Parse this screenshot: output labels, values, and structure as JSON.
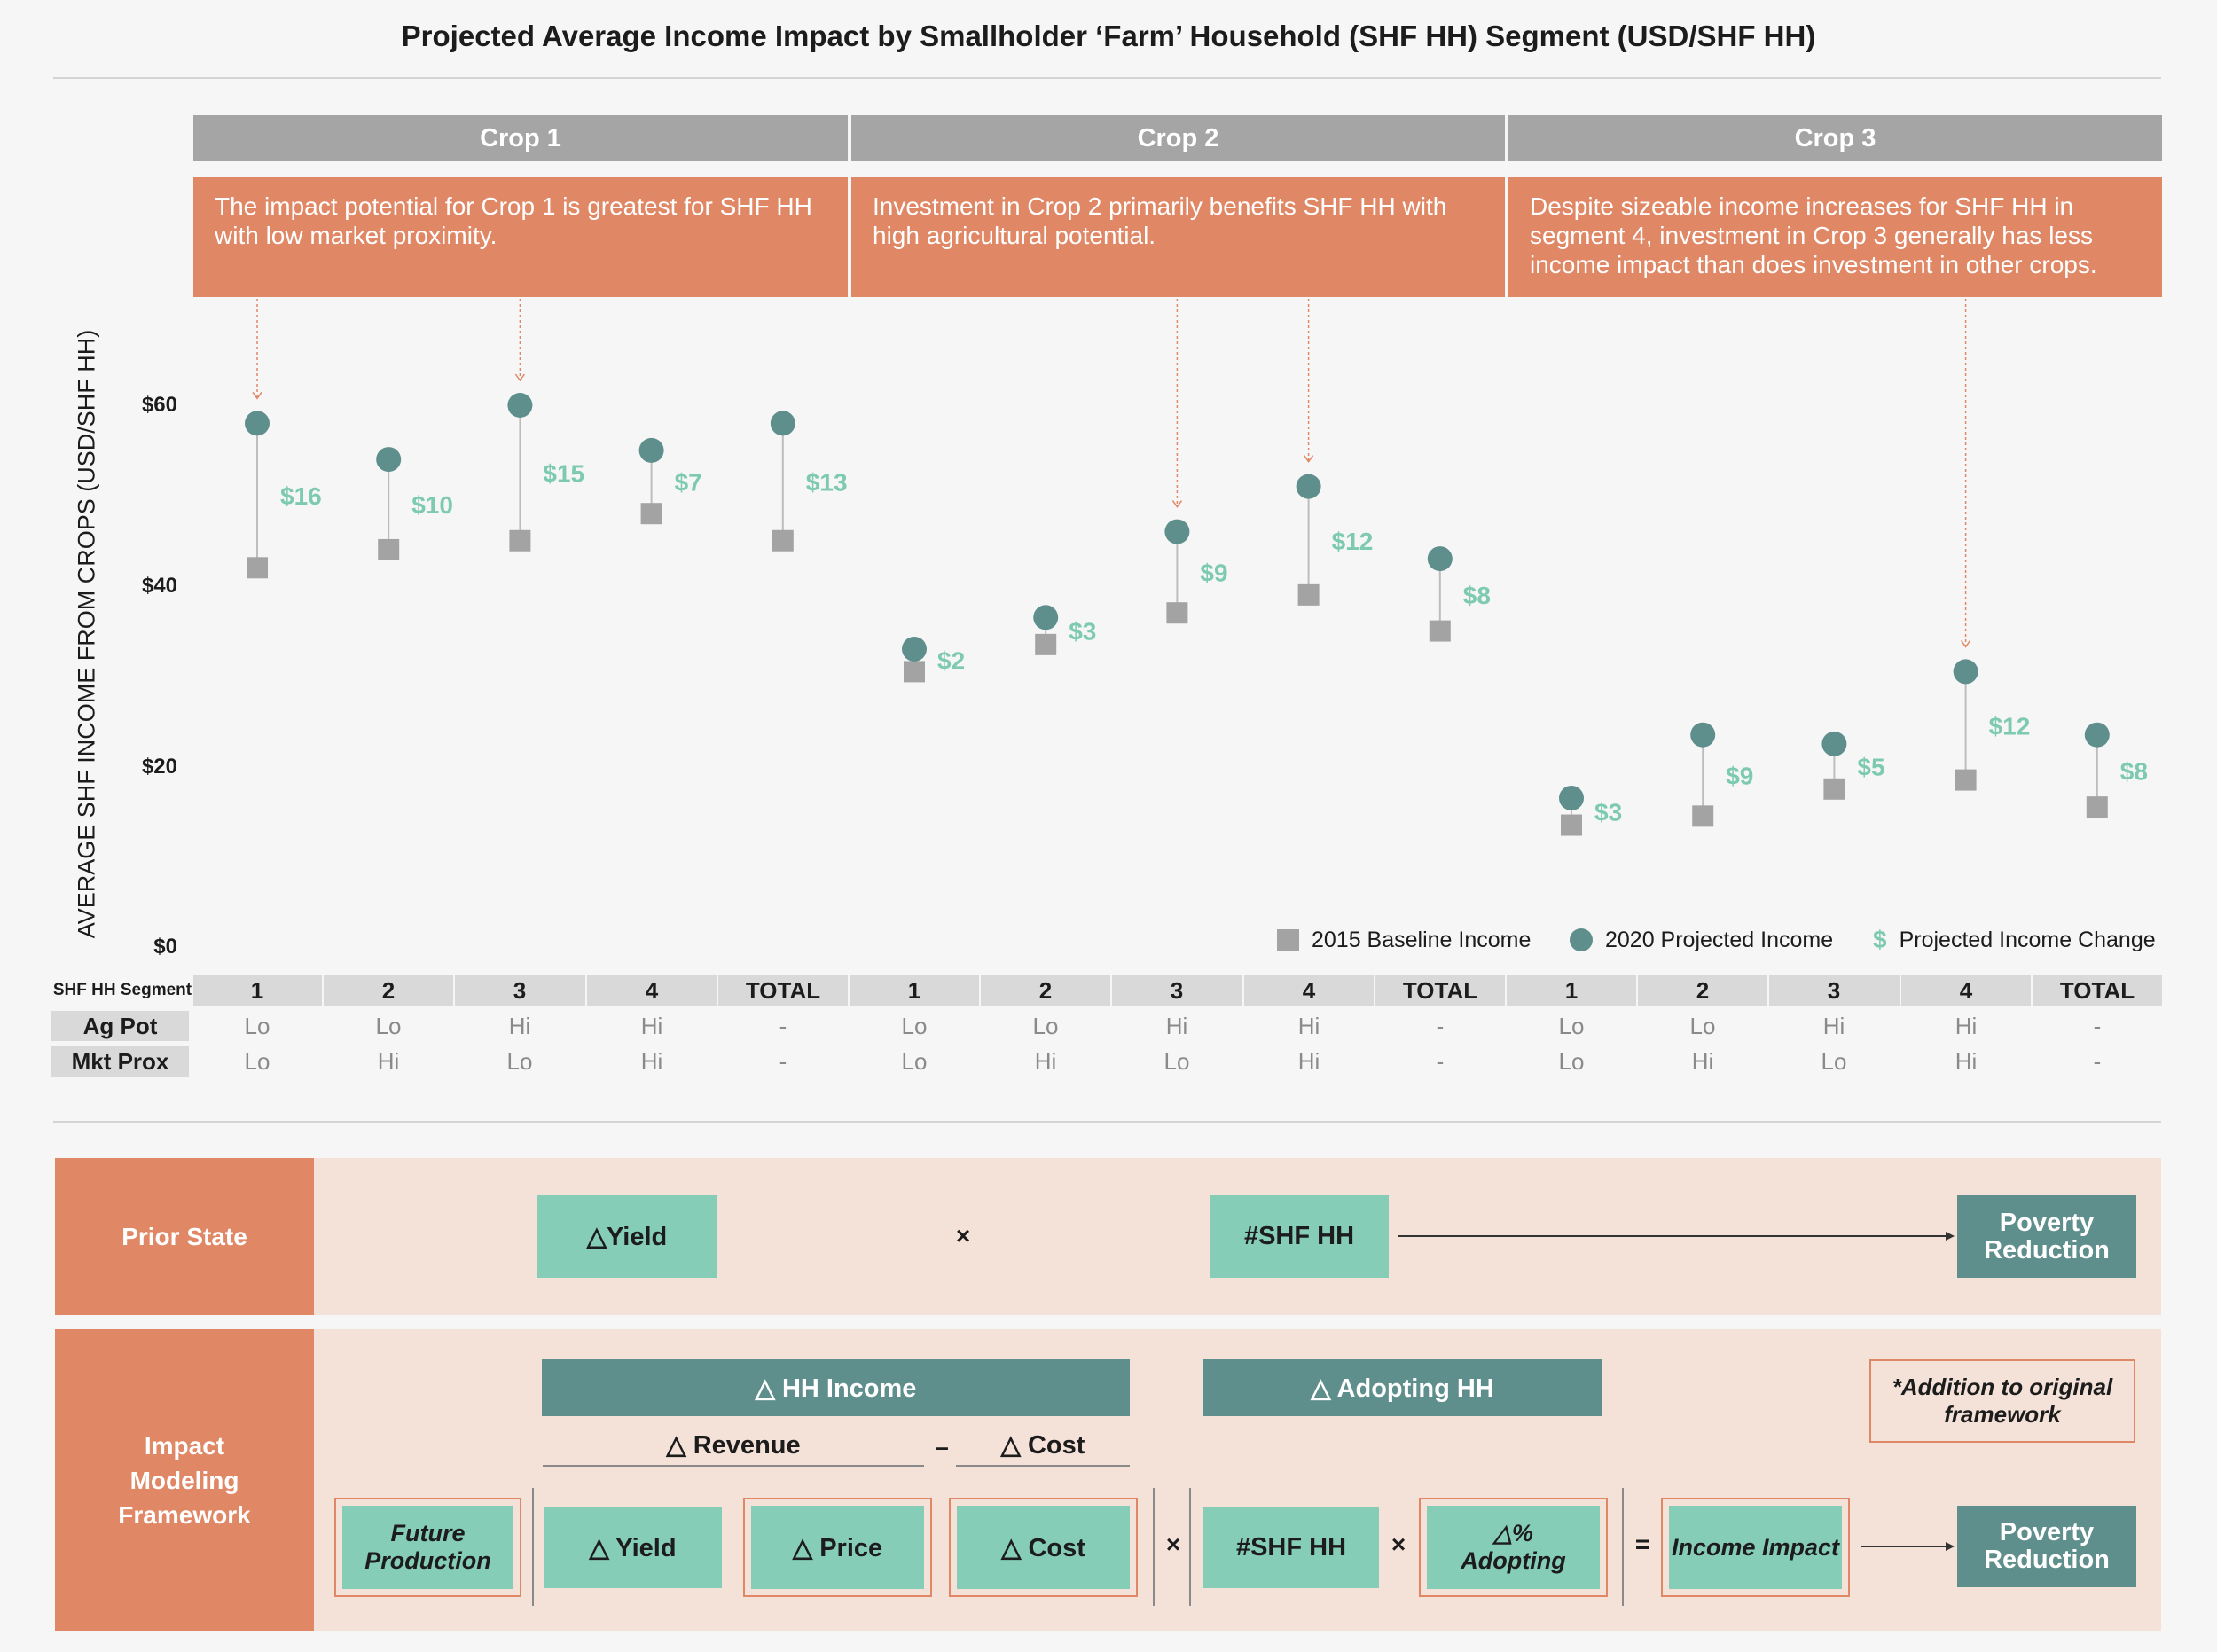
{
  "title": "Projected Average Income Impact by Smallholder ‘Farm’ Household (SHF HH) Segment (USD/SHF HH)",
  "crops": [
    {
      "name": "Crop 1",
      "note": "The impact potential for Crop 1 is greatest for SHF HH with low market proximity."
    },
    {
      "name": "Crop 2",
      "note": "Investment in Crop 2 primarily benefits SHF HH with high agricultural potential."
    },
    {
      "name": "Crop 3",
      "note": "Despite sizeable income increases for SHF HH in segment 4, investment in Crop 3 generally has less income impact than does investment in other crops."
    }
  ],
  "chart_data": {
    "type": "scatter",
    "ylabel": "AVERAGE SHF INCOME FROM CROPS (USD/SHF HH)",
    "ylim": [
      0,
      60
    ],
    "yticks": [
      "$0",
      "$20",
      "$40",
      "$60"
    ],
    "groups": [
      "Crop 1",
      "Crop 2",
      "Crop 3"
    ],
    "categories": [
      "1",
      "2",
      "3",
      "4",
      "TOTAL",
      "1",
      "2",
      "3",
      "4",
      "TOTAL",
      "1",
      "2",
      "3",
      "4",
      "TOTAL"
    ],
    "series": [
      {
        "name": "2015 Baseline Income",
        "marker": "square",
        "color": "#a3a3a3",
        "values": [
          42,
          44,
          45,
          48,
          45,
          30.5,
          33.5,
          37,
          39,
          35,
          13.5,
          14.5,
          17.5,
          18.5,
          15.5
        ]
      },
      {
        "name": "2020 Projected Income",
        "marker": "circle",
        "color": "#5f8f8c",
        "values": [
          58,
          54,
          60,
          55,
          58,
          33,
          36.5,
          46,
          51,
          43,
          16.5,
          23.5,
          22.5,
          30.5,
          23.5
        ]
      }
    ],
    "change_labels": [
      "$16",
      "$10",
      "$15",
      "$7",
      "$13",
      "$2",
      "$3",
      "$9",
      "$12",
      "$8",
      "$3",
      "$9",
      "$5",
      "$12",
      "$8"
    ],
    "change_label_color": "#7dcab0",
    "callout_targets": [
      0,
      2,
      7,
      8,
      13
    ],
    "callout_color": "#e08866",
    "legend": [
      {
        "symbol": "square",
        "label": "2015 Baseline Income"
      },
      {
        "symbol": "circle",
        "label": "2020 Projected Income"
      },
      {
        "symbol": "$",
        "label": "Projected Income Change"
      }
    ],
    "segment_table": {
      "header_label": "SHF HH Segment",
      "rows": [
        {
          "label": "Ag Pot",
          "values": [
            "Lo",
            "Lo",
            "Hi",
            "Hi",
            "-",
            "Lo",
            "Lo",
            "Hi",
            "Hi",
            "-",
            "Lo",
            "Lo",
            "Hi",
            "Hi",
            "-"
          ]
        },
        {
          "label": "Mkt Prox",
          "values": [
            "Lo",
            "Hi",
            "Lo",
            "Hi",
            "-",
            "Lo",
            "Hi",
            "Lo",
            "Hi",
            "-",
            "Lo",
            "Hi",
            "Lo",
            "Hi",
            "-"
          ]
        }
      ]
    }
  },
  "framework": {
    "prior_state": {
      "label": "Prior State",
      "yield": "△Yield",
      "times": "×",
      "shf": "#SHF HH",
      "outcome": "Poverty Reduction"
    },
    "impact": {
      "label": "Impact Modeling Framework",
      "hh_income": "△ HH Income",
      "adopting_hh": "△ Adopting HH",
      "revenue": "△ Revenue",
      "minus": "–",
      "cost_header": "△ Cost",
      "future_production": "Future Production",
      "yield": "△ Yield",
      "price": "△ Price",
      "cost": "△ Cost",
      "times1": "×",
      "shf": "#SHF HH",
      "times2": "×",
      "pct_adopting_top": "△%",
      "pct_adopting_bottom": "Adopting",
      "equals": "=",
      "income_impact": "Income Impact",
      "outcome": "Poverty Reduction",
      "addition_note": "*Addition to original framework"
    },
    "colors": {
      "orange": "#e08866",
      "mint": "#86cdb8",
      "teal": "#5f8f8c",
      "band": "#f4e2d9"
    }
  }
}
